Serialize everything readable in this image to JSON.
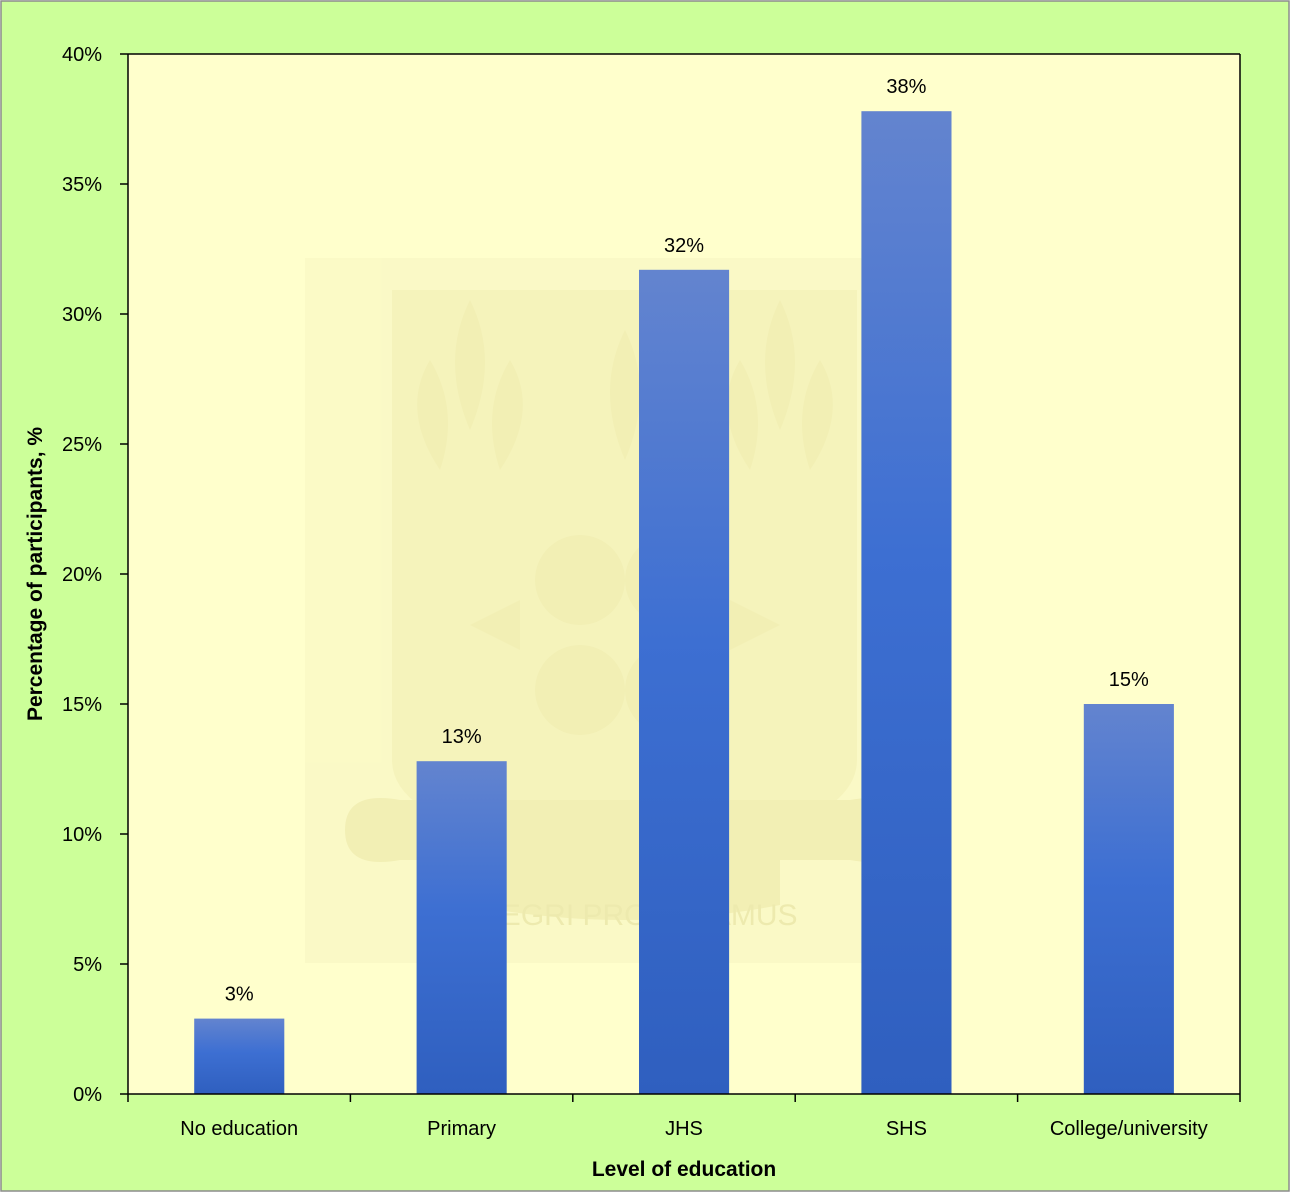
{
  "chart_data": {
    "type": "bar",
    "title": "",
    "xlabel": "Level of education",
    "ylabel": "Percentage of participants, %",
    "categories": [
      "No education",
      "Primary",
      "JHS",
      "SHS",
      "College/university"
    ],
    "values": [
      2.9,
      12.8,
      31.7,
      37.8,
      15.0
    ],
    "data_labels": [
      "3%",
      "13%",
      "32%",
      "38%",
      "15%"
    ],
    "ylim": [
      0,
      40
    ],
    "yticks": [
      0,
      5,
      10,
      15,
      20,
      25,
      30,
      35,
      40
    ],
    "ytick_labels": [
      "0%",
      "5%",
      "10%",
      "15%",
      "20%",
      "25%",
      "30%",
      "35%",
      "40%"
    ],
    "grid": false,
    "legend": "none",
    "colors": {
      "outer_background": "#ccff99",
      "plot_background": "#ffffcc",
      "bar_top": "#6384cf",
      "bar_mid": "#3d6fd2",
      "bar_bottom": "#2f5fbf",
      "axis": "#000000",
      "border": "#8c8c8c"
    },
    "watermark": {
      "motto": "INTEGRI PROCEDAMUS"
    }
  }
}
